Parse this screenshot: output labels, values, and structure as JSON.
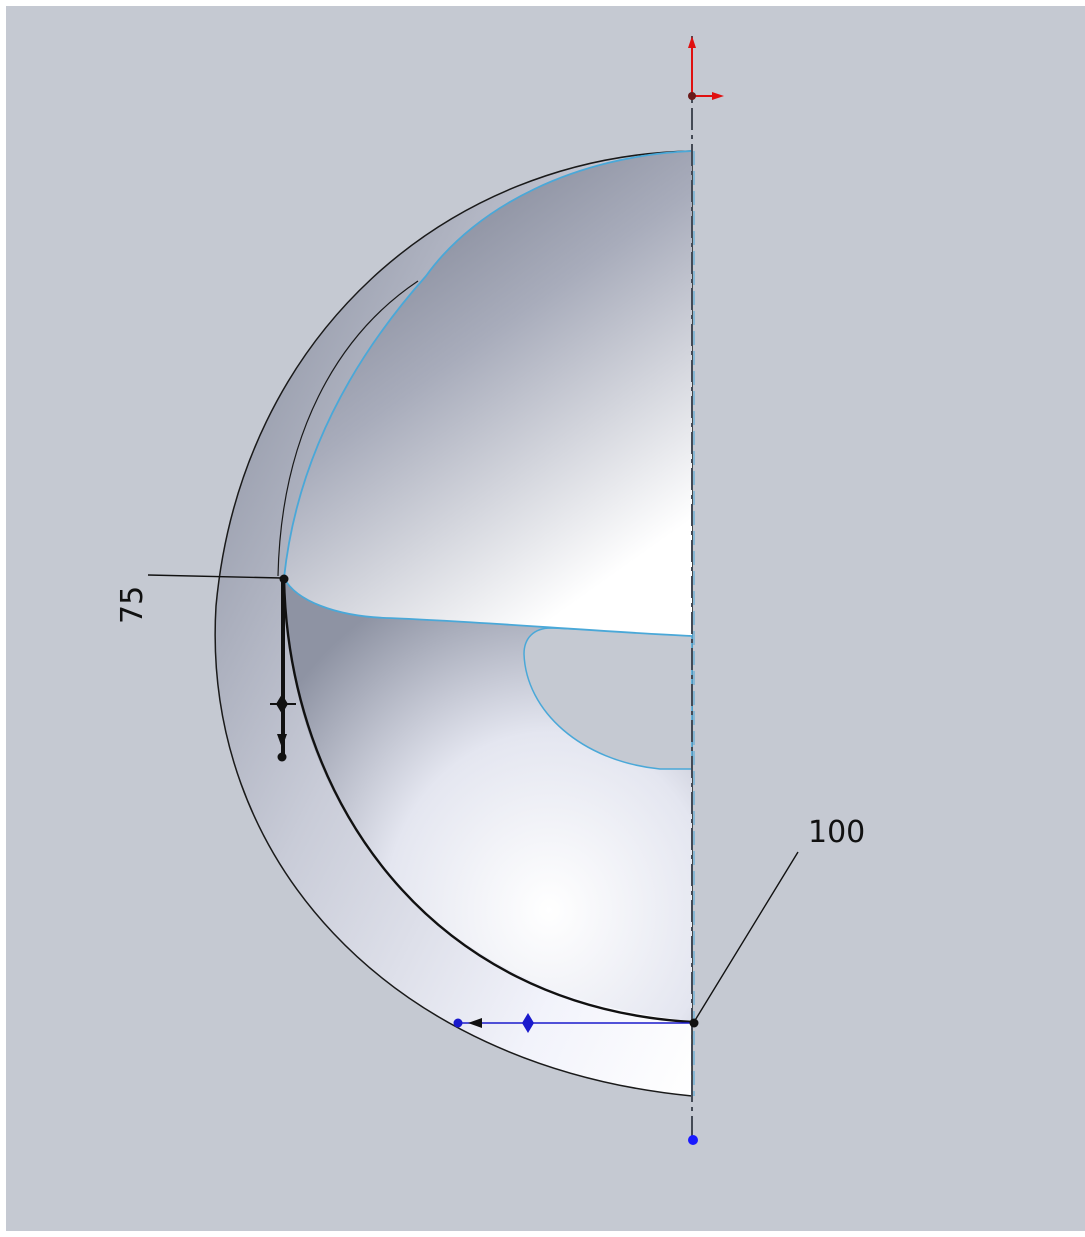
{
  "sketch": {
    "dimension_radius": "75",
    "dimension_sweep": "100"
  },
  "colors": {
    "background": "#c5c9d2",
    "edge": "#1a1a1a",
    "selected_edge": "#4aa8d8",
    "sketch_blue": "#1a1acc",
    "origin_red": "#e01010"
  },
  "icons": {
    "origin": "sketch-origin-icon",
    "handle": "spline-handle-icon"
  }
}
